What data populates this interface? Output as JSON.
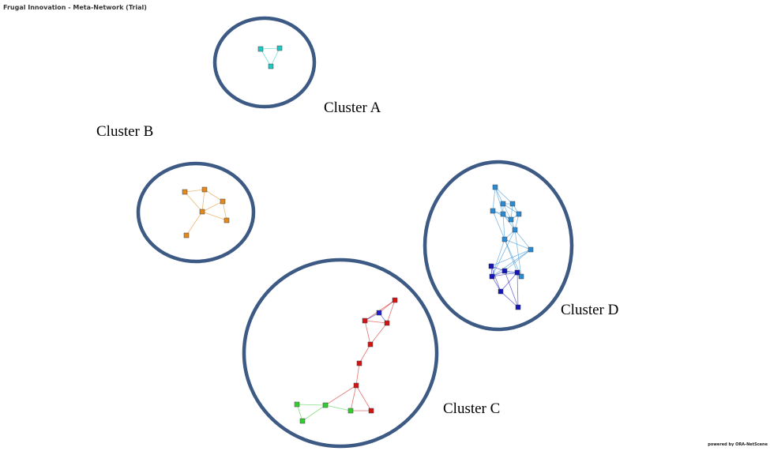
{
  "title": "Frugal Innovation - Meta-Network (Trial)",
  "credit": "powered by ORA-NetScene",
  "colors": {
    "ring": "#3d5a85",
    "cyan": "#22c7c0",
    "orange": "#e08a1e",
    "skyblue": "#2a8ad4",
    "navy": "#1515b8",
    "red": "#d11515",
    "blue": "#1f1fcf",
    "green": "#33cc33"
  },
  "clusters": [
    {
      "id": "A",
      "label": "Cluster A",
      "nodes": [
        {
          "c": "cyan"
        },
        {
          "c": "cyan"
        },
        {
          "c": "cyan"
        }
      ],
      "edges": [
        [
          0,
          1
        ],
        [
          1,
          2
        ],
        [
          0,
          2
        ]
      ]
    },
    {
      "id": "B",
      "label": "Cluster B",
      "nodes": [
        {
          "c": "orange"
        },
        {
          "c": "orange"
        },
        {
          "c": "orange"
        },
        {
          "c": "orange"
        },
        {
          "c": "orange"
        },
        {
          "c": "orange"
        }
      ],
      "edges": [
        [
          0,
          1
        ],
        [
          0,
          3
        ],
        [
          1,
          2
        ],
        [
          1,
          3
        ],
        [
          2,
          3
        ],
        [
          2,
          4
        ],
        [
          3,
          4
        ],
        [
          3,
          5
        ]
      ]
    },
    {
      "id": "C",
      "label": "Cluster C",
      "nodes": [
        {
          "c": "red"
        },
        {
          "c": "blue"
        },
        {
          "c": "red"
        },
        {
          "c": "red"
        },
        {
          "c": "red"
        },
        {
          "c": "red"
        },
        {
          "c": "red"
        },
        {
          "c": "red"
        },
        {
          "c": "green"
        },
        {
          "c": "green"
        },
        {
          "c": "green"
        },
        {
          "c": "green"
        }
      ],
      "edges": [
        [
          0,
          1
        ],
        [
          0,
          3
        ],
        [
          0,
          2
        ],
        [
          1,
          2
        ],
        [
          1,
          3
        ],
        [
          2,
          3
        ],
        [
          2,
          4
        ],
        [
          3,
          4
        ],
        [
          4,
          5
        ],
        [
          5,
          6
        ],
        [
          6,
          7
        ],
        [
          6,
          10
        ],
        [
          6,
          9
        ],
        [
          7,
          10
        ],
        [
          9,
          10
        ],
        [
          8,
          9
        ],
        [
          8,
          11
        ],
        [
          9,
          11
        ]
      ]
    },
    {
      "id": "D",
      "label": "Cluster D",
      "nodes": [
        {
          "c": "skyblue"
        },
        {
          "c": "skyblue"
        },
        {
          "c": "skyblue"
        },
        {
          "c": "skyblue"
        },
        {
          "c": "skyblue"
        },
        {
          "c": "skyblue"
        },
        {
          "c": "skyblue"
        },
        {
          "c": "skyblue"
        },
        {
          "c": "skyblue"
        },
        {
          "c": "skyblue"
        },
        {
          "c": "skyblue"
        },
        {
          "c": "navy"
        },
        {
          "c": "navy"
        },
        {
          "c": "navy"
        },
        {
          "c": "navy"
        },
        {
          "c": "navy"
        },
        {
          "c": "navy"
        }
      ],
      "edges": [
        [
          0,
          1
        ],
        [
          0,
          2
        ],
        [
          0,
          3
        ],
        [
          0,
          4
        ],
        [
          1,
          2
        ],
        [
          1,
          4
        ],
        [
          1,
          5
        ],
        [
          1,
          6
        ],
        [
          2,
          5
        ],
        [
          2,
          6
        ],
        [
          3,
          4
        ],
        [
          3,
          6
        ],
        [
          3,
          7
        ],
        [
          4,
          6
        ],
        [
          4,
          7
        ],
        [
          5,
          6
        ],
        [
          5,
          8
        ],
        [
          6,
          8
        ],
        [
          4,
          8
        ],
        [
          7,
          8
        ],
        [
          7,
          10
        ],
        [
          8,
          10
        ],
        [
          7,
          9
        ],
        [
          8,
          9
        ],
        [
          9,
          11
        ],
        [
          9,
          12
        ],
        [
          9,
          13
        ],
        [
          7,
          12
        ],
        [
          8,
          12
        ],
        [
          10,
          14
        ],
        [
          10,
          13
        ],
        [
          11,
          12
        ],
        [
          11,
          13
        ],
        [
          12,
          13
        ],
        [
          12,
          14
        ],
        [
          13,
          14
        ],
        [
          11,
          15
        ],
        [
          12,
          15
        ],
        [
          14,
          15
        ],
        [
          15,
          16
        ],
        [
          14,
          16
        ],
        [
          13,
          16
        ],
        [
          7,
          14
        ]
      ]
    }
  ]
}
